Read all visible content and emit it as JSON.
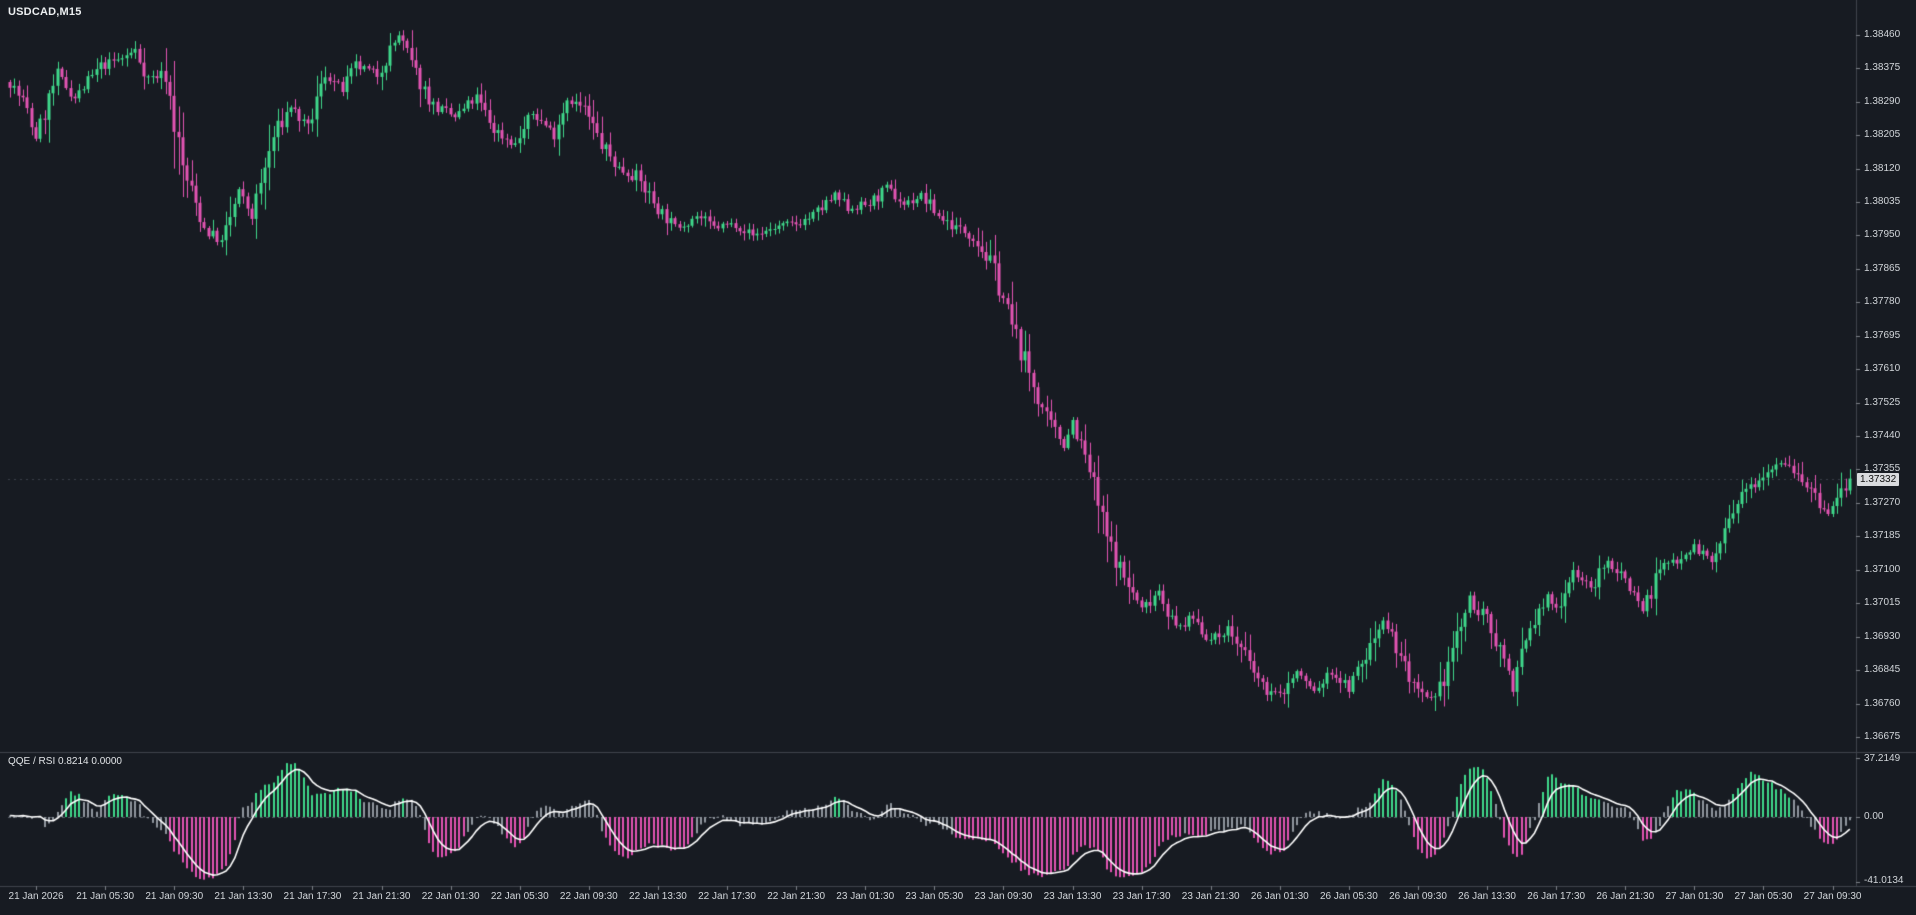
{
  "window": {
    "symbol_label": "USDCAD,M15"
  },
  "colors": {
    "background": "#171b22",
    "bull": "#3fd88a",
    "bear": "#e254b2",
    "neutral_bar": "#8f959d",
    "signal_line": "#ffffff",
    "axis_text": "#d2d6da",
    "separator": "#3f444c",
    "zero_line": "#565c65",
    "price_line": "#3a4049",
    "price_tag_bg": "#d9dbde",
    "price_tag_text": "#0d0d0d"
  },
  "price_axis": {
    "labels": [
      "1.38460",
      "1.38375",
      "1.38290",
      "1.38205",
      "1.38120",
      "1.38035",
      "1.37950",
      "1.37865",
      "1.37780",
      "1.37695",
      "1.37610",
      "1.37525",
      "1.37440",
      "1.37355",
      "1.37270",
      "1.37185",
      "1.37100",
      "1.37015",
      "1.36930",
      "1.36845",
      "1.36760",
      "1.36675"
    ],
    "current_price": "1.37332"
  },
  "time_axis": {
    "labels": [
      "21 Jan 2026",
      "21 Jan 05:30",
      "21 Jan 09:30",
      "21 Jan 13:30",
      "21 Jan 17:30",
      "21 Jan 21:30",
      "22 Jan 01:30",
      "22 Jan 05:30",
      "22 Jan 09:30",
      "22 Jan 13:30",
      "22 Jan 17:30",
      "22 Jan 21:30",
      "23 Jan 01:30",
      "23 Jan 05:30",
      "23 Jan 09:30",
      "23 Jan 13:30",
      "23 Jan 17:30",
      "23 Jan 21:30",
      "26 Jan 01:30",
      "26 Jan 05:30",
      "26 Jan 09:30",
      "26 Jan 13:30",
      "26 Jan 17:30",
      "26 Jan 21:30",
      "27 Jan 01:30",
      "27 Jan 05:30",
      "27 Jan 09:30"
    ]
  },
  "indicator_panel": {
    "title": "QQE / RSI 0.8214 0.0000",
    "max_label": "37.2149",
    "zero_label": "0.00",
    "min_label": "-41.0134"
  },
  "chart_data": {
    "type": "candlestick",
    "symbol": "USDCAD",
    "timeframe": "M15",
    "title": "USDCAD,M15",
    "ylim": [
      1.36647,
      1.38518
    ],
    "visible_price_labels": [
      1.3846,
      1.36675
    ],
    "price_label_step": 0.00085,
    "candle_count": 427,
    "current_price": 1.37332,
    "time_labels_first_candle": 6,
    "time_labels_step": 16,
    "noise_seed": 7,
    "price_waypoints": [
      [
        0,
        1.3834
      ],
      [
        3,
        1.3829
      ],
      [
        6,
        1.382
      ],
      [
        11,
        1.3836
      ],
      [
        15,
        1.383
      ],
      [
        21,
        1.3838
      ],
      [
        26,
        1.384
      ],
      [
        29,
        1.3842
      ],
      [
        32,
        1.3835
      ],
      [
        36,
        1.3836
      ],
      [
        40,
        1.3812
      ],
      [
        45,
        1.3797
      ],
      [
        49,
        1.3793
      ],
      [
        53,
        1.3806
      ],
      [
        56,
        1.38
      ],
      [
        61,
        1.382
      ],
      [
        65,
        1.3828
      ],
      [
        69,
        1.3822
      ],
      [
        73,
        1.3836
      ],
      [
        77,
        1.3832
      ],
      [
        80,
        1.3838
      ],
      [
        85,
        1.3836
      ],
      [
        88,
        1.3842
      ],
      [
        90,
        1.3846
      ],
      [
        94,
        1.3836
      ],
      [
        98,
        1.3828
      ],
      [
        103,
        1.3825
      ],
      [
        108,
        1.383
      ],
      [
        112,
        1.3822
      ],
      [
        117,
        1.3818
      ],
      [
        121,
        1.3826
      ],
      [
        126,
        1.3821
      ],
      [
        129,
        1.383
      ],
      [
        133,
        1.3827
      ],
      [
        137,
        1.3818
      ],
      [
        141,
        1.3812
      ],
      [
        145,
        1.381
      ],
      [
        150,
        1.3802
      ],
      [
        154,
        1.3797
      ],
      [
        159,
        1.38
      ],
      [
        163,
        1.3797
      ],
      [
        168,
        1.3798
      ],
      [
        172,
        1.3795
      ],
      [
        177,
        1.3797
      ],
      [
        182,
        1.3798
      ],
      [
        186,
        1.38
      ],
      [
        191,
        1.3805
      ],
      [
        194,
        1.3802
      ],
      [
        199,
        1.3803
      ],
      [
        203,
        1.3807
      ],
      [
        207,
        1.3803
      ],
      [
        211,
        1.3805
      ],
      [
        215,
        1.38
      ],
      [
        219,
        1.3797
      ],
      [
        223,
        1.3795
      ],
      [
        228,
        1.3786
      ],
      [
        232,
        1.3772
      ],
      [
        236,
        1.376
      ],
      [
        240,
        1.3748
      ],
      [
        244,
        1.3742
      ],
      [
        246,
        1.3748
      ],
      [
        250,
        1.3735
      ],
      [
        254,
        1.3718
      ],
      [
        258,
        1.3708
      ],
      [
        262,
        1.37
      ],
      [
        266,
        1.3705
      ],
      [
        270,
        1.3695
      ],
      [
        274,
        1.3698
      ],
      [
        278,
        1.3692
      ],
      [
        282,
        1.3695
      ],
      [
        286,
        1.3688
      ],
      [
        290,
        1.368
      ],
      [
        294,
        1.3678
      ],
      [
        298,
        1.3684
      ],
      [
        302,
        1.3679
      ],
      [
        306,
        1.3684
      ],
      [
        310,
        1.368
      ],
      [
        314,
        1.3688
      ],
      [
        318,
        1.3698
      ],
      [
        322,
        1.3688
      ],
      [
        326,
        1.3678
      ],
      [
        330,
        1.3676
      ],
      [
        334,
        1.369
      ],
      [
        338,
        1.3702
      ],
      [
        342,
        1.3697
      ],
      [
        346,
        1.3688
      ],
      [
        348,
        1.368
      ],
      [
        352,
        1.3695
      ],
      [
        356,
        1.3703
      ],
      [
        358,
        1.37
      ],
      [
        362,
        1.371
      ],
      [
        366,
        1.3705
      ],
      [
        370,
        1.3712
      ],
      [
        374,
        1.3708
      ],
      [
        378,
        1.37
      ],
      [
        382,
        1.371
      ],
      [
        386,
        1.3713
      ],
      [
        390,
        1.3716
      ],
      [
        394,
        1.3712
      ],
      [
        398,
        1.3722
      ],
      [
        402,
        1.373
      ],
      [
        406,
        1.3735
      ],
      [
        410,
        1.3738
      ],
      [
        414,
        1.3735
      ],
      [
        418,
        1.3728
      ],
      [
        421,
        1.3724
      ],
      [
        424,
        1.373
      ],
      [
        426,
        1.37332
      ]
    ],
    "indicator": {
      "type": "histogram+line",
      "name": "QQE / RSI",
      "ylim": [
        -41.0134,
        37.2149
      ],
      "current_values": [
        0.8214,
        0.0
      ],
      "zero_level": 0.0,
      "momentum_window": 8,
      "tanh_scale": 480,
      "amplitude": 44,
      "gray_threshold": 11,
      "legend": [
        "positive-histogram-green",
        "negative-histogram-magenta",
        "neutral-histogram-gray",
        "signal-line-white"
      ]
    }
  }
}
